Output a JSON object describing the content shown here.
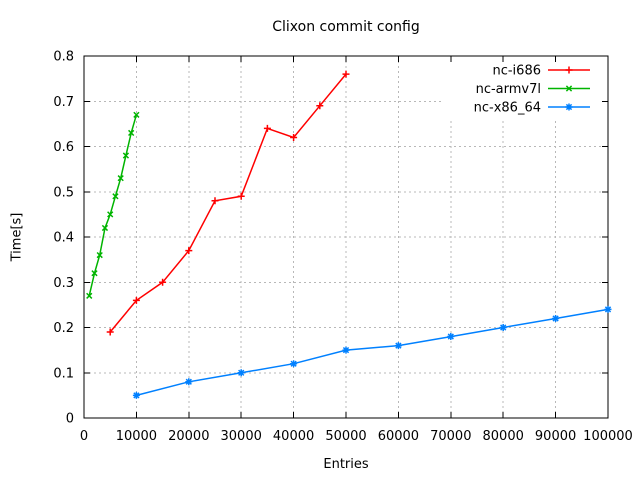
{
  "chart_data": {
    "type": "line",
    "title": "Clixon commit config",
    "xlabel": "Entries",
    "ylabel": "Time[s]",
    "xlim": [
      0,
      100000
    ],
    "ylim": [
      0,
      0.8
    ],
    "x_ticks": [
      0,
      10000,
      20000,
      30000,
      40000,
      50000,
      60000,
      70000,
      80000,
      90000,
      100000
    ],
    "y_ticks": [
      0,
      0.1,
      0.2,
      0.3,
      0.4,
      0.5,
      0.6,
      0.7,
      0.8
    ],
    "grid": true,
    "legend_position": "top-right-inside",
    "colors": {
      "background": "#ffffff",
      "axis": "#000000",
      "grid": "#b8b8b8",
      "text": "#000000",
      "legend_background": "#ffffff"
    },
    "series": [
      {
        "name": "nc-i686",
        "color": "#ff0000",
        "marker": "plus",
        "x": [
          5000,
          10000,
          15000,
          20000,
          25000,
          30000,
          35000,
          40000,
          45000,
          50000
        ],
        "y": [
          0.19,
          0.26,
          0.3,
          0.37,
          0.48,
          0.49,
          0.64,
          0.62,
          0.69,
          0.76
        ]
      },
      {
        "name": "nc-armv7l",
        "color": "#00b400",
        "marker": "cross",
        "x": [
          1000,
          2000,
          3000,
          4000,
          5000,
          6000,
          7000,
          8000,
          9000,
          10000
        ],
        "y": [
          0.27,
          0.32,
          0.36,
          0.42,
          0.45,
          0.49,
          0.53,
          0.58,
          0.63,
          0.67
        ]
      },
      {
        "name": "nc-x86_64",
        "color": "#0080ff",
        "marker": "star",
        "x": [
          10000,
          20000,
          30000,
          40000,
          50000,
          60000,
          70000,
          80000,
          90000,
          100000
        ],
        "y": [
          0.05,
          0.08,
          0.1,
          0.12,
          0.15,
          0.16,
          0.18,
          0.2,
          0.22,
          0.24
        ]
      }
    ]
  }
}
